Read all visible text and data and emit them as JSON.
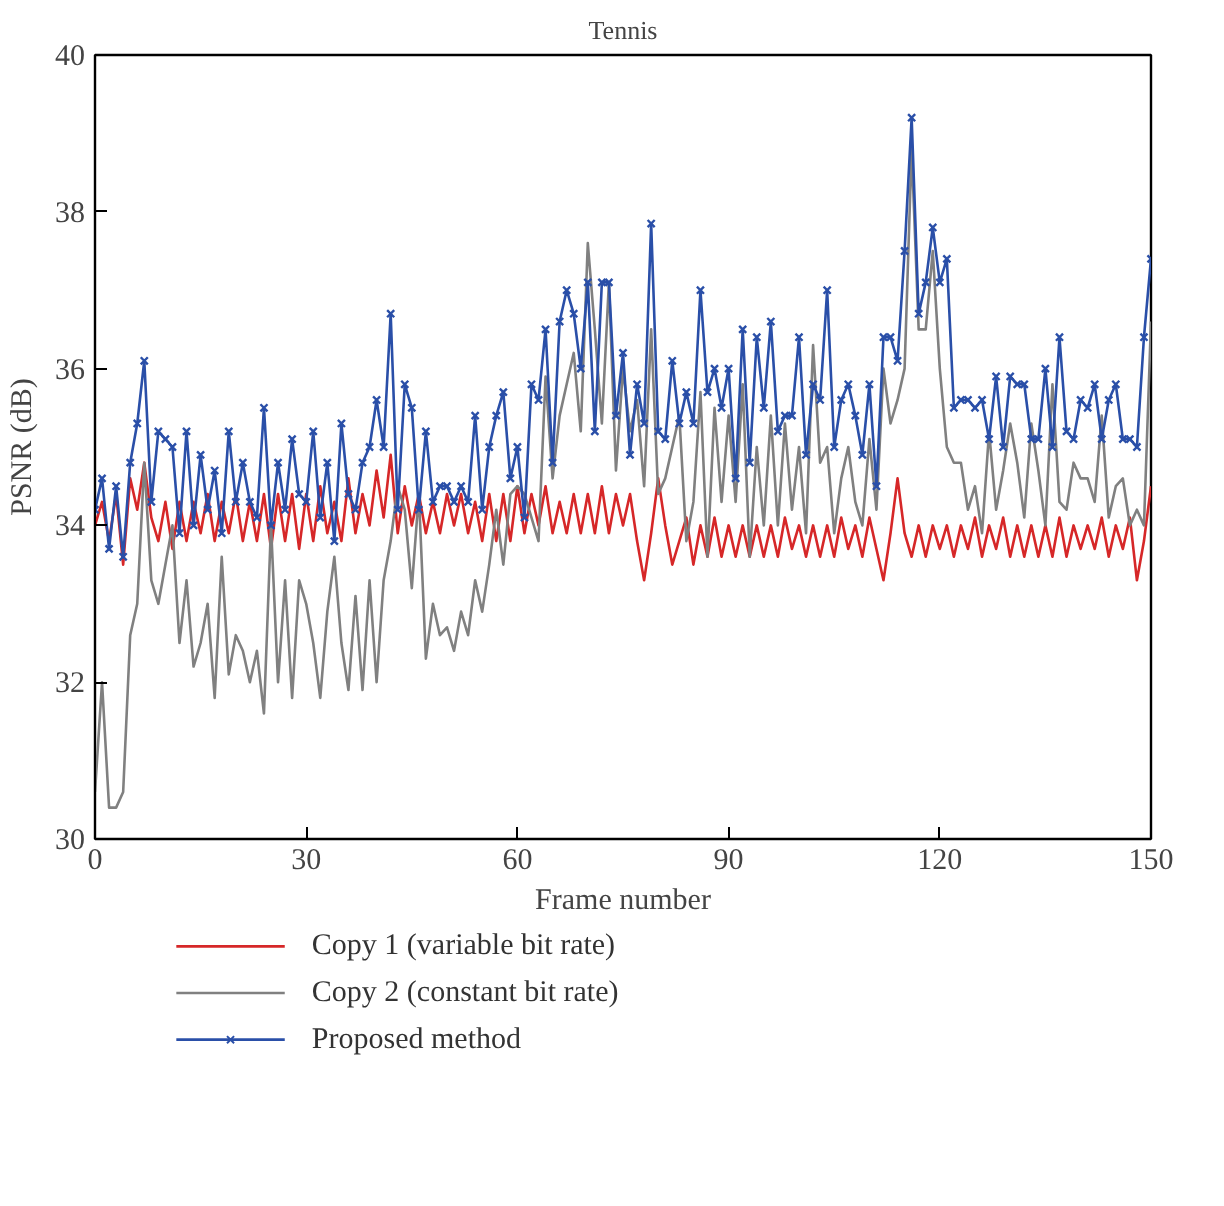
{
  "chart_data": {
    "type": "line",
    "title": "Tennis",
    "xlabel": "Frame number",
    "ylabel": "PSNR (dB)",
    "xlim": [
      0,
      150
    ],
    "ylim": [
      30,
      40
    ],
    "xticks": [
      0,
      30,
      60,
      90,
      120,
      150
    ],
    "yticks": [
      30,
      32,
      34,
      36,
      38,
      40
    ],
    "grid": false,
    "legend": "bottom",
    "line_style": "solid",
    "x": [
      0,
      1,
      2,
      3,
      4,
      5,
      6,
      7,
      8,
      9,
      10,
      11,
      12,
      13,
      14,
      15,
      16,
      17,
      18,
      19,
      20,
      21,
      22,
      23,
      24,
      25,
      26,
      27,
      28,
      29,
      30,
      31,
      32,
      33,
      34,
      35,
      36,
      37,
      38,
      39,
      40,
      41,
      42,
      43,
      44,
      45,
      46,
      47,
      48,
      49,
      50,
      51,
      52,
      53,
      54,
      55,
      56,
      57,
      58,
      59,
      60,
      61,
      62,
      63,
      64,
      65,
      66,
      67,
      68,
      69,
      70,
      71,
      72,
      73,
      74,
      75,
      76,
      77,
      78,
      79,
      80,
      81,
      82,
      83,
      84,
      85,
      86,
      87,
      88,
      89,
      90,
      91,
      92,
      93,
      94,
      95,
      96,
      97,
      98,
      99,
      100,
      101,
      102,
      103,
      104,
      105,
      106,
      107,
      108,
      109,
      110,
      111,
      112,
      113,
      114,
      115,
      116,
      117,
      118,
      119,
      120,
      121,
      122,
      123,
      124,
      125,
      126,
      127,
      128,
      129,
      130,
      131,
      132,
      133,
      134,
      135,
      136,
      137,
      138,
      139,
      140,
      141,
      142,
      143,
      144,
      145,
      146,
      147,
      148,
      149,
      150
    ],
    "series": [
      {
        "name": "Copy 1 (variable bit rate)",
        "color": "#d62728",
        "marker": "none",
        "values": [
          34.0,
          34.3,
          33.8,
          34.4,
          33.5,
          34.6,
          34.2,
          34.8,
          34.1,
          33.8,
          34.3,
          33.7,
          34.3,
          33.8,
          34.3,
          33.9,
          34.4,
          33.8,
          34.3,
          33.9,
          34.4,
          33.8,
          34.3,
          33.8,
          34.4,
          33.7,
          34.4,
          33.8,
          34.4,
          33.7,
          34.4,
          33.8,
          34.5,
          33.9,
          34.3,
          33.8,
          34.6,
          33.9,
          34.4,
          34.0,
          34.7,
          34.1,
          34.9,
          33.9,
          34.5,
          34.0,
          34.4,
          33.9,
          34.3,
          33.9,
          34.4,
          34.0,
          34.4,
          33.9,
          34.3,
          33.8,
          34.4,
          33.8,
          34.4,
          33.8,
          34.5,
          33.9,
          34.4,
          34.0,
          34.5,
          33.9,
          34.3,
          33.9,
          34.4,
          33.9,
          34.4,
          33.9,
          34.5,
          33.9,
          34.4,
          34.0,
          34.4,
          33.8,
          33.3,
          33.9,
          34.6,
          34.0,
          33.5,
          33.8,
          34.1,
          33.5,
          34.0,
          33.6,
          34.1,
          33.6,
          34.0,
          33.6,
          34.0,
          33.6,
          34.0,
          33.6,
          34.0,
          33.6,
          34.1,
          33.7,
          34.0,
          33.6,
          34.0,
          33.6,
          34.0,
          33.6,
          34.1,
          33.7,
          34.0,
          33.6,
          34.1,
          33.7,
          33.3,
          33.9,
          34.6,
          33.9,
          33.6,
          34.0,
          33.6,
          34.0,
          33.7,
          34.0,
          33.6,
          34.0,
          33.7,
          34.1,
          33.6,
          34.0,
          33.7,
          34.1,
          33.6,
          34.0,
          33.6,
          34.0,
          33.6,
          34.0,
          33.6,
          34.1,
          33.6,
          34.0,
          33.7,
          34.0,
          33.7,
          34.1,
          33.6,
          34.0,
          33.7,
          34.1,
          33.3,
          33.8,
          34.5
        ]
      },
      {
        "name": "Copy 2 (constant bit rate)",
        "color": "#808080",
        "marker": "none",
        "values": [
          30.6,
          32.0,
          30.4,
          30.4,
          30.6,
          32.6,
          33.0,
          34.8,
          33.3,
          33.0,
          33.5,
          34.0,
          32.5,
          33.3,
          32.2,
          32.5,
          33.0,
          31.8,
          33.6,
          32.1,
          32.6,
          32.4,
          32.0,
          32.4,
          31.6,
          34.0,
          32.0,
          33.3,
          31.8,
          33.3,
          33.0,
          32.5,
          31.8,
          32.9,
          33.6,
          32.5,
          31.9,
          33.1,
          31.9,
          33.3,
          32.0,
          33.3,
          33.8,
          34.5,
          34.2,
          33.2,
          34.4,
          32.3,
          33.0,
          32.6,
          32.7,
          32.4,
          32.9,
          32.6,
          33.3,
          32.9,
          33.5,
          34.2,
          33.5,
          34.4,
          34.5,
          34.4,
          34.1,
          33.8,
          35.9,
          34.6,
          35.4,
          35.8,
          36.2,
          35.2,
          37.6,
          36.5,
          35.3,
          37.1,
          34.7,
          36.0,
          35.2,
          35.6,
          34.5,
          36.5,
          34.4,
          34.6,
          35.0,
          35.4,
          33.8,
          34.3,
          35.7,
          33.6,
          35.5,
          34.3,
          35.4,
          34.3,
          35.8,
          33.6,
          35.0,
          34.0,
          35.4,
          34.0,
          35.3,
          34.2,
          35.0,
          33.9,
          36.3,
          34.8,
          35.0,
          33.9,
          34.6,
          35.0,
          34.3,
          34.0,
          35.1,
          34.2,
          36.0,
          35.3,
          35.6,
          36.0,
          38.8,
          36.5,
          36.5,
          37.5,
          36.0,
          35.0,
          34.8,
          34.8,
          34.2,
          34.5,
          33.9,
          35.2,
          34.2,
          34.7,
          35.3,
          34.8,
          34.1,
          35.3,
          34.7,
          34.0,
          35.8,
          34.3,
          34.2,
          34.8,
          34.6,
          34.6,
          34.3,
          35.4,
          34.1,
          34.5,
          34.6,
          34.0,
          34.2,
          34.0,
          36.6
        ]
      },
      {
        "name": "Proposed method",
        "color": "#2a4fa8",
        "marker": "cross",
        "values": [
          34.2,
          34.6,
          33.7,
          34.5,
          33.6,
          34.8,
          35.3,
          36.1,
          34.3,
          35.2,
          35.1,
          35.0,
          33.9,
          35.2,
          34.0,
          34.9,
          34.2,
          34.7,
          33.9,
          35.2,
          34.3,
          34.8,
          34.3,
          34.1,
          35.5,
          34.0,
          34.8,
          34.2,
          35.1,
          34.4,
          34.3,
          35.2,
          34.1,
          34.8,
          33.8,
          35.3,
          34.4,
          34.2,
          34.8,
          35.0,
          35.6,
          35.0,
          36.7,
          34.2,
          35.8,
          35.5,
          34.2,
          35.2,
          34.3,
          34.5,
          34.5,
          34.3,
          34.5,
          34.3,
          35.4,
          34.2,
          35.0,
          35.4,
          35.7,
          34.6,
          35.0,
          34.1,
          35.8,
          35.6,
          36.5,
          34.8,
          36.6,
          37.0,
          36.7,
          36.0,
          37.1,
          35.2,
          37.1,
          37.1,
          35.4,
          36.2,
          34.9,
          35.8,
          35.3,
          37.85,
          35.2,
          35.1,
          36.1,
          35.3,
          35.7,
          35.3,
          37.0,
          35.7,
          36.0,
          35.5,
          36.0,
          34.6,
          36.5,
          34.8,
          36.4,
          35.5,
          36.6,
          35.2,
          35.4,
          35.4,
          36.4,
          34.9,
          35.8,
          35.6,
          37.0,
          35.0,
          35.6,
          35.8,
          35.4,
          34.9,
          35.8,
          34.5,
          36.4,
          36.4,
          36.1,
          37.5,
          39.2,
          36.7,
          37.1,
          37.8,
          37.1,
          37.4,
          35.5,
          35.6,
          35.6,
          35.5,
          35.6,
          35.1,
          35.9,
          35.0,
          35.9,
          35.8,
          35.8,
          35.1,
          35.1,
          36.0,
          35.0,
          36.4,
          35.2,
          35.1,
          35.6,
          35.5,
          35.8,
          35.1,
          35.6,
          35.8,
          35.1,
          35.1,
          35.0,
          36.4,
          37.4
        ]
      }
    ]
  }
}
